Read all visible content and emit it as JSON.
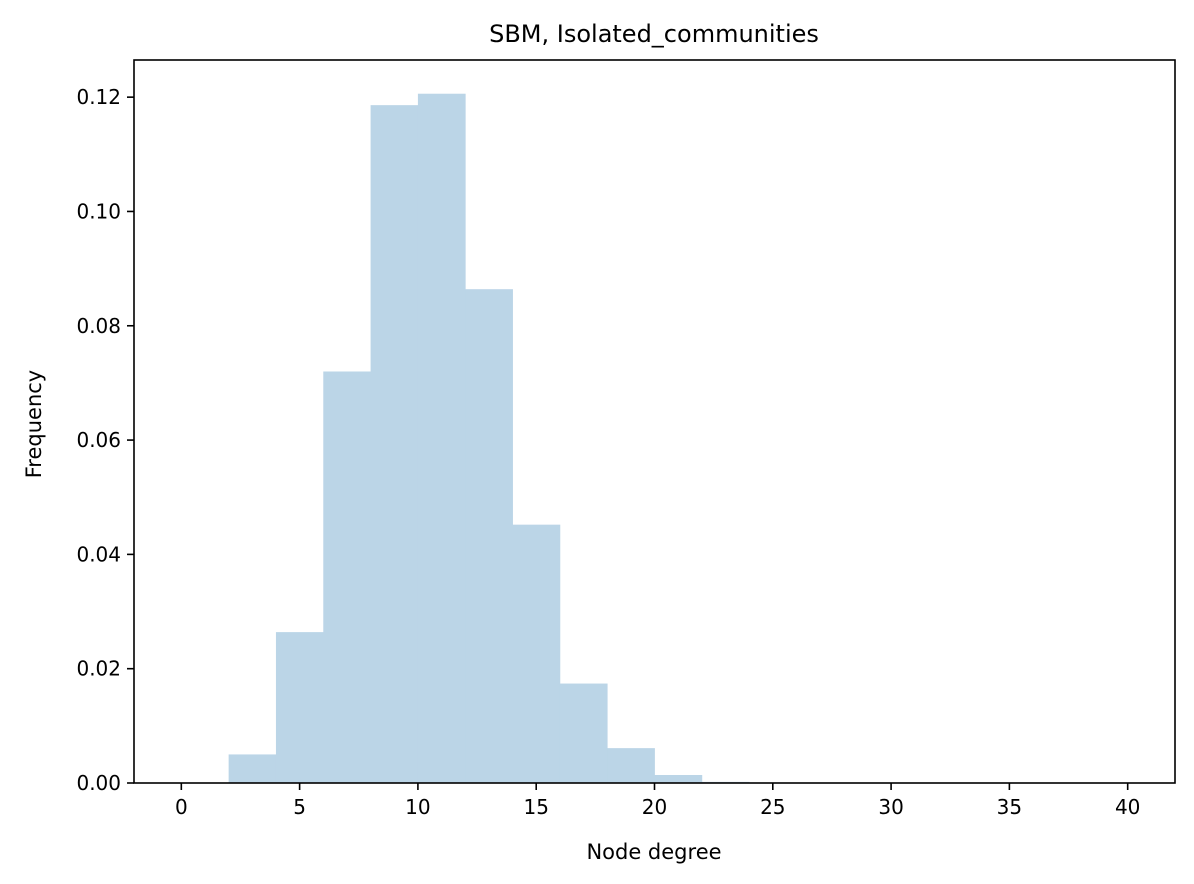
{
  "chart_data": {
    "type": "bar",
    "title": "SBM, Isolated_communities",
    "xlabel": "Node degree",
    "ylabel": "Frequency",
    "xlim": [
      -2,
      42
    ],
    "ylim": [
      0,
      0.1265
    ],
    "bin_width": 2,
    "bins": [
      {
        "x0": 0,
        "x1": 2,
        "value": 0.0
      },
      {
        "x0": 2,
        "x1": 4,
        "value": 0.005
      },
      {
        "x0": 4,
        "x1": 6,
        "value": 0.0264
      },
      {
        "x0": 6,
        "x1": 8,
        "value": 0.072
      },
      {
        "x0": 8,
        "x1": 10,
        "value": 0.1186
      },
      {
        "x0": 10,
        "x1": 12,
        "value": 0.1206
      },
      {
        "x0": 12,
        "x1": 14,
        "value": 0.0864
      },
      {
        "x0": 14,
        "x1": 16,
        "value": 0.0452
      },
      {
        "x0": 16,
        "x1": 18,
        "value": 0.0174
      },
      {
        "x0": 18,
        "x1": 20,
        "value": 0.0061
      },
      {
        "x0": 20,
        "x1": 22,
        "value": 0.0014
      },
      {
        "x0": 22,
        "x1": 24,
        "value": 0.0002
      },
      {
        "x0": 24,
        "x1": 26,
        "value": 0.0
      },
      {
        "x0": 26,
        "x1": 28,
        "value": 0.0
      },
      {
        "x0": 28,
        "x1": 30,
        "value": 0.0
      },
      {
        "x0": 30,
        "x1": 32,
        "value": 0.0
      },
      {
        "x0": 32,
        "x1": 34,
        "value": 0.0
      },
      {
        "x0": 34,
        "x1": 36,
        "value": 0.0
      },
      {
        "x0": 36,
        "x1": 38,
        "value": 0.0
      },
      {
        "x0": 38,
        "x1": 40,
        "value": 0.0
      }
    ],
    "x_ticks": [
      0,
      5,
      10,
      15,
      20,
      25,
      30,
      35,
      40
    ],
    "x_tick_labels": [
      "0",
      "5",
      "10",
      "15",
      "20",
      "25",
      "30",
      "35",
      "40"
    ],
    "y_ticks": [
      0.0,
      0.02,
      0.04,
      0.06,
      0.08,
      0.1,
      0.12
    ],
    "y_tick_labels": [
      "0.00",
      "0.02",
      "0.04",
      "0.06",
      "0.08",
      "0.10",
      "0.12"
    ],
    "bar_color": "#bbd5e7",
    "grid": false,
    "legend": false
  }
}
